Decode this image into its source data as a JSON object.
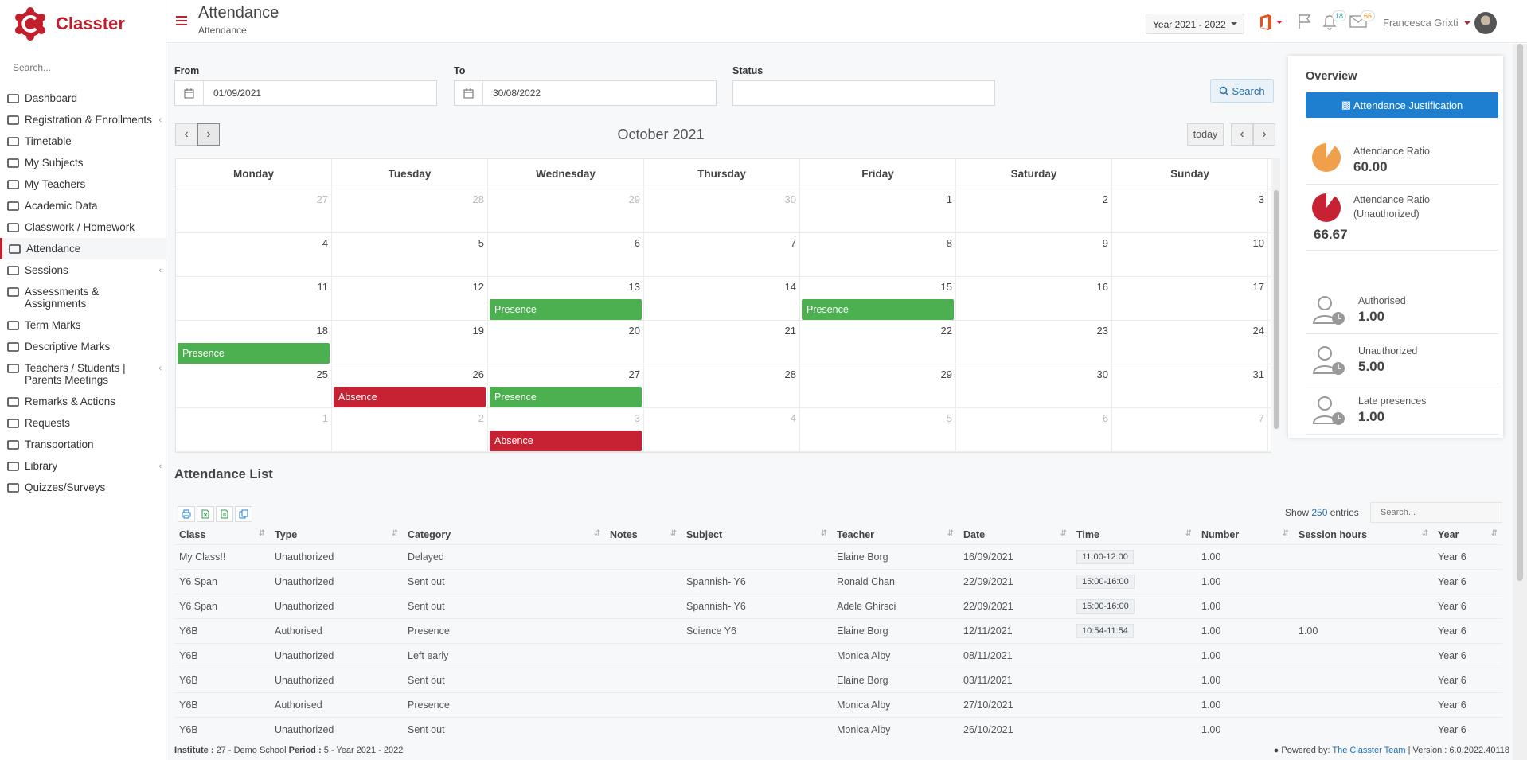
{
  "app": {
    "name": "Classter"
  },
  "sidebar": {
    "search_placeholder": "Search...",
    "items": [
      {
        "label": "Dashboard"
      },
      {
        "label": "Registration & Enrollments"
      },
      {
        "label": "Timetable"
      },
      {
        "label": "My Subjects"
      },
      {
        "label": "My Teachers"
      },
      {
        "label": "Academic Data"
      },
      {
        "label": "Classwork / Homework"
      },
      {
        "label": "Attendance"
      },
      {
        "label": "Sessions"
      },
      {
        "label": "Assessments & Assignments"
      },
      {
        "label": "Term Marks"
      },
      {
        "label": "Descriptive Marks"
      },
      {
        "label": "Teachers / Students | Parents Meetings"
      },
      {
        "label": "Remarks & Actions"
      },
      {
        "label": "Requests"
      },
      {
        "label": "Transportation"
      },
      {
        "label": "Library"
      },
      {
        "label": "Quizzes/Surveys"
      }
    ]
  },
  "header": {
    "title": "Attendance",
    "subtitle": "Attendance",
    "year": "Year 2021 - 2022",
    "notifications_count": "18",
    "messages_count": "66",
    "user": "Francesca Grixti"
  },
  "filters": {
    "from_label": "From",
    "from_value": "01/09/2021",
    "to_label": "To",
    "to_value": "30/08/2022",
    "status_label": "Status",
    "status_value": "",
    "search_button": "Search"
  },
  "calendar": {
    "title": "October 2021",
    "today_button": "today",
    "prev": "‹",
    "next": "›",
    "days_of_week": [
      "Monday",
      "Tuesday",
      "Wednesday",
      "Thursday",
      "Friday",
      "Saturday",
      "Sunday"
    ],
    "weeks": [
      [
        {
          "n": "27",
          "other": true
        },
        {
          "n": "28",
          "other": true
        },
        {
          "n": "29",
          "other": true
        },
        {
          "n": "30",
          "other": true
        },
        {
          "n": "1"
        },
        {
          "n": "2"
        },
        {
          "n": "3"
        }
      ],
      [
        {
          "n": "4"
        },
        {
          "n": "5"
        },
        {
          "n": "6"
        },
        {
          "n": "7"
        },
        {
          "n": "8"
        },
        {
          "n": "9"
        },
        {
          "n": "10"
        }
      ],
      [
        {
          "n": "11"
        },
        {
          "n": "12"
        },
        {
          "n": "13",
          "event": "Presence",
          "type": "presence"
        },
        {
          "n": "14"
        },
        {
          "n": "15",
          "event": "Presence",
          "type": "presence"
        },
        {
          "n": "16"
        },
        {
          "n": "17"
        }
      ],
      [
        {
          "n": "18",
          "event": "Presence",
          "type": "presence"
        },
        {
          "n": "19"
        },
        {
          "n": "20"
        },
        {
          "n": "21"
        },
        {
          "n": "22"
        },
        {
          "n": "23"
        },
        {
          "n": "24"
        }
      ],
      [
        {
          "n": "25"
        },
        {
          "n": "26",
          "event": "Absence",
          "type": "absence"
        },
        {
          "n": "27",
          "event": "Presence",
          "type": "presence"
        },
        {
          "n": "28"
        },
        {
          "n": "29"
        },
        {
          "n": "30"
        },
        {
          "n": "31"
        }
      ],
      [
        {
          "n": "1",
          "other": true
        },
        {
          "n": "2",
          "other": true
        },
        {
          "n": "3",
          "other": true,
          "event": "Absence",
          "type": "absence"
        },
        {
          "n": "4",
          "other": true
        },
        {
          "n": "5",
          "other": true
        },
        {
          "n": "6",
          "other": true
        },
        {
          "n": "7",
          "other": true
        }
      ]
    ]
  },
  "overview": {
    "title": "Overview",
    "justification_button": "Attendance Justification",
    "ratio_label": "Attendance Ratio",
    "ratio_value": "60.00",
    "ratio_unauth_label": "Attendance Ratio (Unauthorized)",
    "ratio_unauth_value": "66.67",
    "authorised_label": "Authorised",
    "authorised_value": "1.00",
    "unauthorized_label": "Unauthorized",
    "unauthorized_value": "5.00",
    "late_label": "Late presences",
    "late_value": "1.00",
    "colors": {
      "ratio": "#f0a04b",
      "ratio_unauth": "#c62233"
    }
  },
  "list": {
    "title": "Attendance List",
    "show_label": "Show",
    "show_count": "250",
    "entries_label": "entries",
    "search_placeholder": "Search...",
    "columns": [
      "Class",
      "Type",
      "Category",
      "Notes",
      "Subject",
      "Teacher",
      "Date",
      "Time",
      "Number",
      "Session hours",
      "Year"
    ],
    "rows": [
      [
        "My Class!!",
        "Unauthorized",
        "Delayed",
        "",
        "",
        "Elaine Borg",
        "16/09/2021",
        "11:00-12:00",
        "1.00",
        "",
        "Year 6"
      ],
      [
        "Y6 Span",
        "Unauthorized",
        "Sent out",
        "",
        "Spannish- Y6",
        "Ronald Chan",
        "22/09/2021",
        "15:00-16:00",
        "1.00",
        "",
        "Year 6"
      ],
      [
        "Y6 Span",
        "Unauthorized",
        "Sent out",
        "",
        "Spannish- Y6",
        "Adele Ghirsci",
        "22/09/2021",
        "15:00-16:00",
        "1.00",
        "",
        "Year 6"
      ],
      [
        "Y6B",
        "Authorised",
        "Presence",
        "",
        "Science Y6",
        "Elaine Borg",
        "12/11/2021",
        "10:54-11:54",
        "1.00",
        "1.00",
        "Year 6"
      ],
      [
        "Y6B",
        "Unauthorized",
        "Left early",
        "",
        "",
        "Monica Alby",
        "08/11/2021",
        "",
        "1.00",
        "",
        "Year 6"
      ],
      [
        "Y6B",
        "Unauthorized",
        "Sent out",
        "",
        "",
        "Elaine Borg",
        "03/11/2021",
        "",
        "1.00",
        "",
        "Year 6"
      ],
      [
        "Y6B",
        "Authorised",
        "Presence",
        "",
        "",
        "Monica Alby",
        "27/10/2021",
        "",
        "1.00",
        "",
        "Year 6"
      ],
      [
        "Y6B",
        "Unauthorized",
        "Sent out",
        "",
        "",
        "Monica Alby",
        "26/10/2021",
        "",
        "1.00",
        "",
        "Year 6"
      ]
    ]
  },
  "footer": {
    "institute_label": "Institute :",
    "institute_value": "27 - Demo School",
    "period_label": "Period :",
    "period_value": "5 - Year 2021 - 2022",
    "powered_label": "Powered by:",
    "powered_link": "The Classter Team",
    "version": "| Version : 6.0.2022.40118"
  }
}
